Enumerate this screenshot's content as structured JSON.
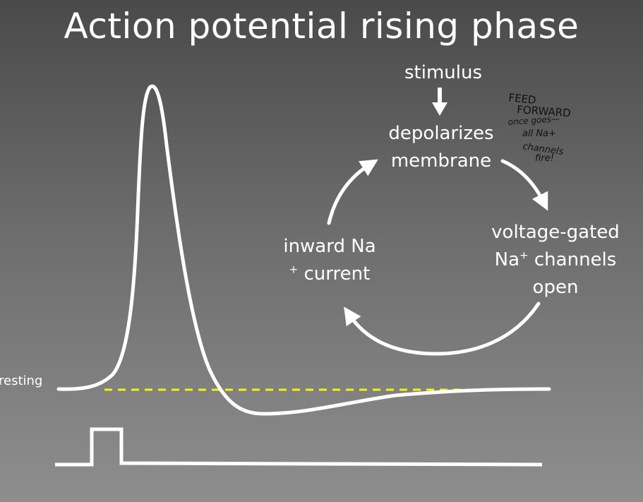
{
  "title": "Action potential rising phase",
  "labels": {
    "stimulus": "stimulus",
    "depolarizes_line1": "depolarizes",
    "depolarizes_line2": "membrane",
    "vgated_line1": "voltage-gated",
    "vgated_line2_a": "Na",
    "vgated_line2_sup": "+",
    "vgated_line2_b": " channels",
    "vgated_line3": "open",
    "inward_line1": "inward Na",
    "inward_line2_sup": "+",
    "inward_line2_b": " current",
    "resting": "resting"
  },
  "annotation": {
    "line1": "FEED",
    "line2": "FORWARD",
    "line3": "once goes—",
    "line4": "all Na+",
    "line5": "channels",
    "line6": "fire!"
  },
  "colors": {
    "background_top": "#4a4a4a",
    "background_bottom": "#8e8e8e",
    "foreground": "#ffffff",
    "resting_line": "#f5f500",
    "annotation_ink": "#111111"
  },
  "icons": {
    "stimulus_arrow": "down-arrow-icon",
    "cycle_arrows": "circular-arrow-icon"
  }
}
